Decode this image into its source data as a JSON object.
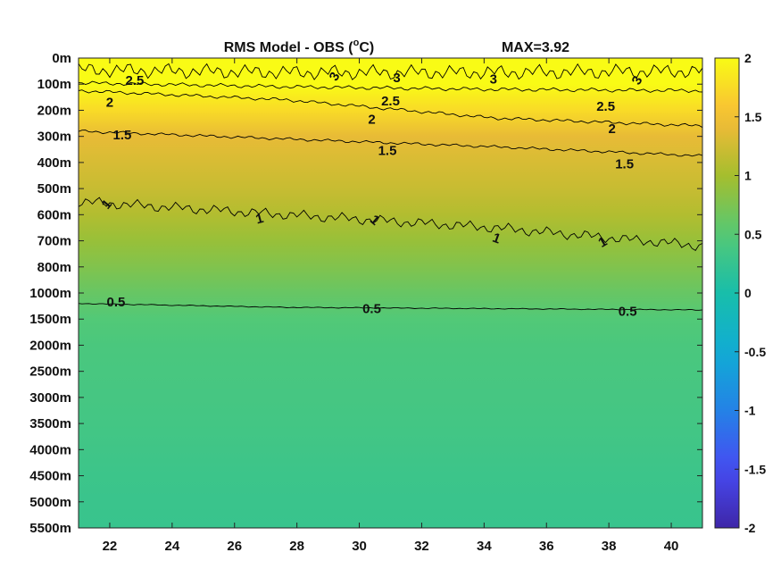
{
  "chart_data": {
    "type": "heatmap",
    "title": "RMS Model - OBS (",
    "title_sup": "o",
    "title_unit": "C)",
    "max_label": "MAX=3.92",
    "xlabel": "",
    "ylabel": "",
    "xlim": [
      21,
      41
    ],
    "x_ticks": [
      22,
      24,
      26,
      28,
      30,
      32,
      34,
      36,
      38,
      40
    ],
    "y_ticks": [
      "0m",
      "100m",
      "200m",
      "300m",
      "400m",
      "500m",
      "600m",
      "700m",
      "800m",
      "1000m",
      "1500m",
      "2000m",
      "2500m",
      "3000m",
      "3500m",
      "4000m",
      "4500m",
      "5000m",
      "5500m"
    ],
    "colormap": "parula",
    "clim": [
      -2,
      2
    ],
    "colorbar_ticks": [
      2,
      1.5,
      1,
      0.5,
      0,
      -0.5,
      -1,
      -1.5,
      -2
    ],
    "colorbar_tick_labels": [
      "2",
      "1.5",
      "1",
      "0.5",
      "0",
      "-0.5",
      "-1",
      "-1.5",
      "-2"
    ],
    "field_profile": [
      {
        "level": "0m",
        "value": 2.6
      },
      {
        "level": "100m",
        "value": 2.3
      },
      {
        "level": "200m",
        "value": 1.75
      },
      {
        "level": "300m",
        "value": 1.4
      },
      {
        "level": "400m",
        "value": 1.3
      },
      {
        "level": "500m",
        "value": 1.2
      },
      {
        "level": "600m",
        "value": 1.08
      },
      {
        "level": "700m",
        "value": 0.92
      },
      {
        "level": "800m",
        "value": 0.78
      },
      {
        "level": "1000m",
        "value": 0.62
      },
      {
        "level": "1500m",
        "value": 0.48
      },
      {
        "level": "2000m",
        "value": 0.42
      },
      {
        "level": "2500m",
        "value": 0.4
      },
      {
        "level": "3000m",
        "value": 0.38
      },
      {
        "level": "3500m",
        "value": 0.36
      },
      {
        "level": "4000m",
        "value": 0.33
      },
      {
        "level": "4500m",
        "value": 0.3
      },
      {
        "level": "5000m",
        "value": 0.28
      },
      {
        "level": "5500m",
        "value": 0.27
      }
    ],
    "contours": [
      {
        "level": 0.5,
        "label": "0.5",
        "y_levels": [
          9.4,
          9.55,
          9.6,
          9.65
        ],
        "amplitude": 0.02
      },
      {
        "level": 1,
        "label": "1",
        "y_levels": [
          5.5,
          6.0,
          6.5,
          7.2
        ],
        "amplitude": 0.22
      },
      {
        "level": 1.5,
        "label": "1.5",
        "y_levels": [
          2.8,
          3.1,
          3.4,
          3.75
        ],
        "amplitude": 0.06
      },
      {
        "level": 2,
        "label": "2",
        "y_levels": [
          1.25,
          1.6,
          2.3,
          2.6
        ],
        "amplitude": 0.07
      },
      {
        "level": 2.5,
        "label": "2.5",
        "y_levels": [
          0.95,
          1.1,
          1.2,
          1.25
        ],
        "amplitude": 0.08
      },
      {
        "level": 3,
        "label": "3",
        "y_levels": [
          0.45,
          0.55,
          0.55,
          0.5
        ],
        "amplitude": 0.3
      }
    ],
    "contour_labels": [
      {
        "text": "2.5",
        "x": 22.8,
        "y": 0.85
      },
      {
        "text": "3",
        "x": 29.2,
        "y": 0.7,
        "angle": -60
      },
      {
        "text": "3",
        "x": 31.2,
        "y": 0.75
      },
      {
        "text": "3",
        "x": 34.3,
        "y": 0.8
      },
      {
        "text": "3",
        "x": 38.9,
        "y": 0.85,
        "angle": -60
      },
      {
        "text": "2",
        "x": 22.0,
        "y": 1.7
      },
      {
        "text": "2.5",
        "x": 31.0,
        "y": 1.65
      },
      {
        "text": "2.5",
        "x": 37.9,
        "y": 1.85
      },
      {
        "text": "2",
        "x": 30.4,
        "y": 2.35
      },
      {
        "text": "2",
        "x": 38.1,
        "y": 2.7
      },
      {
        "text": "1.5",
        "x": 22.4,
        "y": 2.95
      },
      {
        "text": "1.5",
        "x": 30.9,
        "y": 3.55
      },
      {
        "text": "1.5",
        "x": 38.5,
        "y": 4.05
      },
      {
        "text": "1",
        "x": 21.9,
        "y": 5.6,
        "angle": -50
      },
      {
        "text": "1",
        "x": 26.8,
        "y": 6.15,
        "angle": -15
      },
      {
        "text": "1",
        "x": 30.5,
        "y": 6.2,
        "angle": 40
      },
      {
        "text": "1",
        "x": 34.4,
        "y": 6.9,
        "angle": 20
      },
      {
        "text": "1",
        "x": 37.8,
        "y": 7.05,
        "angle": -30
      },
      {
        "text": "0.5",
        "x": 22.2,
        "y": 9.35
      },
      {
        "text": "0.5",
        "x": 30.4,
        "y": 9.6
      },
      {
        "text": "0.5",
        "x": 38.6,
        "y": 9.7
      }
    ]
  }
}
